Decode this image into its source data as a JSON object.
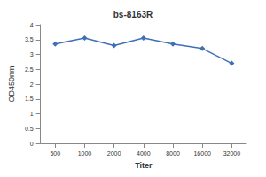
{
  "chart_data": {
    "type": "line",
    "title": "bs-8163R",
    "x_label": "Titer",
    "y_label": "OD450nm",
    "categories": [
      "500",
      "1000",
      "2000",
      "4000",
      "8000",
      "16000",
      "32000"
    ],
    "values": [
      3.35,
      3.55,
      3.3,
      3.55,
      3.35,
      3.2,
      2.7
    ],
    "color": "#3f6fb6",
    "marker": "diamond",
    "ylim": [
      0,
      4
    ],
    "yticks": [
      0,
      0.5,
      1,
      1.5,
      2,
      2.5,
      3,
      3.5,
      4
    ],
    "grid": false
  }
}
